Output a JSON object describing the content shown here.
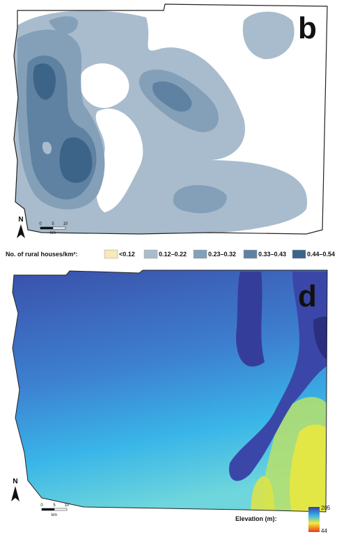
{
  "panels": [
    {
      "label": "b",
      "north": "N",
      "scale_ticks": [
        "0",
        "5",
        "10"
      ],
      "scale_unit": "km"
    },
    {
      "label": "d",
      "north": "N",
      "scale_ticks": [
        "0",
        "5",
        "10"
      ],
      "scale_unit": "km"
    }
  ],
  "density_legend": {
    "title": "No. of rural houses/km²:",
    "items": [
      {
        "label": "<0.12",
        "color": "#f7e9b8"
      },
      {
        "label": "0.12–0.22",
        "color": "#a9bccd"
      },
      {
        "label": "0.23–0.32",
        "color": "#84a0b9"
      },
      {
        "label": "0.33–0.43",
        "color": "#5f82a2"
      },
      {
        "label": "0.44–0.54",
        "color": "#3b6488"
      }
    ]
  },
  "elevation_legend": {
    "title": "Elevation (m):",
    "max": "205",
    "min": "44"
  }
}
